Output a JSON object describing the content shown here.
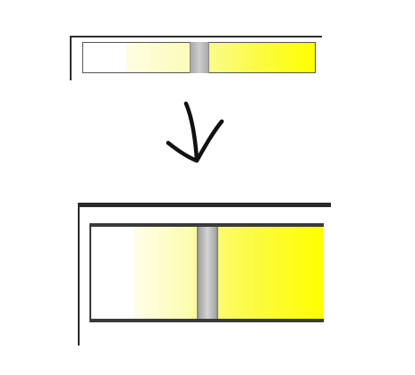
{
  "sliders": [
    {
      "name": "slider-before",
      "track_colors": {
        "empty": "#ffffff",
        "gradient_start": "#fdfde4",
        "gradient_end": "#ffff00"
      },
      "thumb_color": "#bdbdbd",
      "value": 0.47
    },
    {
      "name": "slider-after",
      "track_colors": {
        "empty": "#ffffff",
        "gradient_start": "#fefeea",
        "gradient_end": "#ffff00"
      },
      "thumb_color": "#bdbdbd",
      "value": 0.47
    }
  ],
  "arrow": {
    "icon": "down-arrow-icon",
    "color": "#111111"
  }
}
